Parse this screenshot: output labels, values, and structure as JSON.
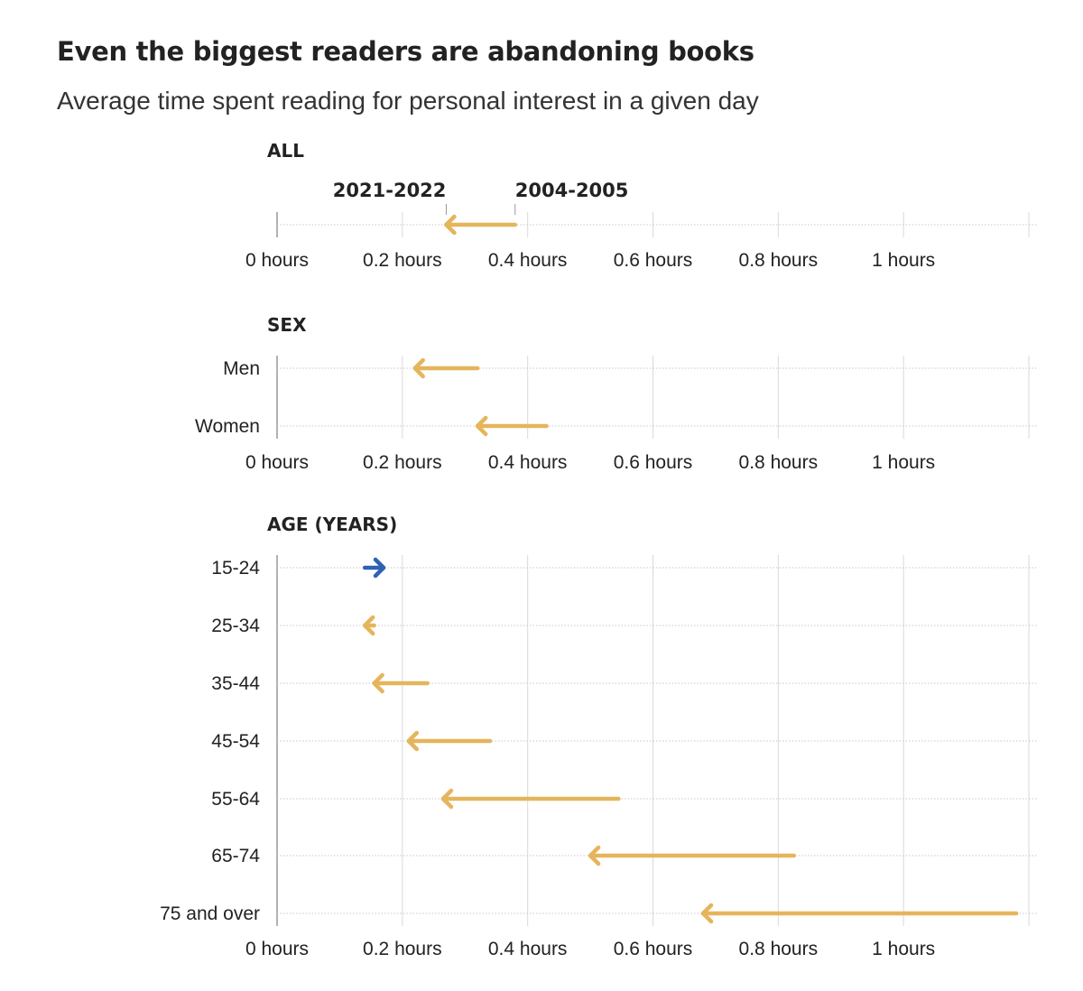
{
  "title": "Even the biggest readers are abandoning books",
  "subtitle": "Average time spent reading for personal interest in a given day",
  "colors": {
    "decrease": "#E5B55C",
    "increase": "#2F62B3",
    "grid": "#d9d9d9",
    "axis": "#999999",
    "text": "#222222"
  },
  "chart_data": {
    "type": "arrow-dot-plot",
    "x_unit": "hours",
    "xlim": [
      0,
      1.2
    ],
    "x_ticks": [
      0,
      0.2,
      0.4,
      0.6,
      0.8,
      1.0
    ],
    "x_tick_labels": [
      "0 hours",
      "0.2 hours",
      "0.4 hours",
      "0.6 hours",
      "0.8 hours",
      "1 hours"
    ],
    "start_label": "2004-2005",
    "end_label": "2021-2022",
    "panels": [
      {
        "title": "ALL",
        "rows": [
          {
            "label": "",
            "start": 0.38,
            "end": 0.27
          }
        ]
      },
      {
        "title": "SEX",
        "rows": [
          {
            "label": "Men",
            "start": 0.32,
            "end": 0.22
          },
          {
            "label": "Women",
            "start": 0.43,
            "end": 0.32
          }
        ]
      },
      {
        "title": "AGE (YEARS)",
        "rows": [
          {
            "label": "15-24",
            "start": 0.14,
            "end": 0.17
          },
          {
            "label": "25-34",
            "start": 0.155,
            "end": 0.14
          },
          {
            "label": "35-44",
            "start": 0.24,
            "end": 0.155
          },
          {
            "label": "45-54",
            "start": 0.34,
            "end": 0.21
          },
          {
            "label": "55-64",
            "start": 0.545,
            "end": 0.265
          },
          {
            "label": "65-74",
            "start": 0.825,
            "end": 0.5
          },
          {
            "label": "75 and over",
            "start": 1.18,
            "end": 0.68
          }
        ]
      }
    ]
  }
}
